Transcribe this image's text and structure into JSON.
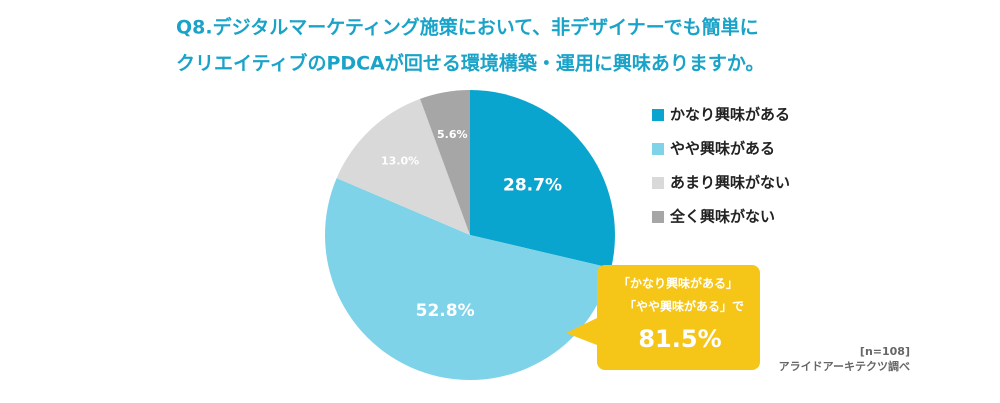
{
  "chart_data": {
    "type": "pie",
    "title": [
      "Q8.デジタルマーケティング施策において、非デザイナーでも簡単に",
      "クリエイティブのPDCAが回せる環境構築・運用に興味ありますか。"
    ],
    "categories": [
      "かなり興味がある",
      "やや興味がある",
      "あまり興味がない",
      "全く興味がない"
    ],
    "values": [
      28.7,
      52.8,
      13.0,
      5.6
    ],
    "value_labels": [
      "28.7%",
      "52.8%",
      "13.0%",
      "5.6%"
    ],
    "colors": [
      "#0aa5cf",
      "#7fd3e8",
      "#d9d9d9",
      "#a6a6a6"
    ],
    "callout": [
      "「かなり興味がある」",
      "「やや興味がある」で",
      "81.5%"
    ],
    "notes": [
      "[n=108]",
      "アライドアーキテクツ調べ"
    ]
  }
}
